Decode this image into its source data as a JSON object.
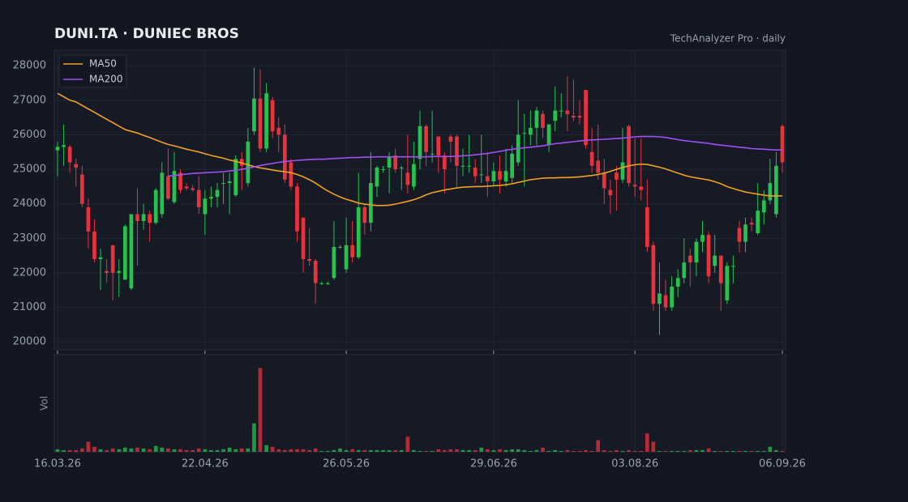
{
  "chart_data": {
    "type": "candlestick",
    "title": "DUNI.TA  ·  DUNIEC BROS",
    "subtitle": "TechAnalyzer Pro · daily",
    "grid": true,
    "legend": "upper left",
    "up_color": "#26c14f",
    "down_color": "#e8323c",
    "xlim": [
      0,
      118
    ],
    "xticks": [
      {
        "value": 0,
        "label": "16.03.26"
      },
      {
        "value": 24,
        "label": "22.04.26"
      },
      {
        "value": 47,
        "label": "26.05.26"
      },
      {
        "value": 71,
        "label": "29.06.26"
      },
      {
        "value": 94,
        "label": "03.08.26"
      },
      {
        "value": 118,
        "label": "06.09.26"
      }
    ],
    "ylim": [
      19770,
      28450
    ],
    "yticks": [
      20000,
      21000,
      22000,
      23000,
      24000,
      25000,
      26000,
      27000,
      28000
    ],
    "open": [
      25550,
      25650,
      25650,
      25150,
      24850,
      23900,
      23200,
      22400,
      22050,
      22800,
      22000,
      21800,
      21550,
      23700,
      23500,
      23700,
      23450,
      23700,
      24800,
      24050,
      24900,
      24500,
      24450,
      24400,
      23700,
      24150,
      24200,
      24600,
      24600,
      24250,
      25300,
      24600,
      26100,
      27050,
      25600,
      27000,
      26200,
      26000,
      25200,
      24500,
      23600,
      22400,
      22350,
      21700,
      21700,
      21850,
      22750,
      22100,
      22800,
      22450,
      23900,
      23450,
      24500,
      25000,
      25050,
      25400,
      25050,
      24900,
      24500,
      25300,
      26250,
      25450,
      25950,
      25400,
      25950,
      25950,
      25100,
      25100,
      25050,
      24850,
      24800,
      24650,
      24950,
      24650,
      24750,
      25200,
      26050,
      26000,
      26200,
      26600,
      25700,
      26400,
      26700,
      26700,
      26550,
      26550,
      27300,
      25500,
      25250,
      24900,
      24400,
      24900,
      24700,
      26250,
      24550,
      24500,
      23900,
      22800,
      21100,
      21350,
      21000,
      21600,
      21850,
      22500,
      22300,
      22900,
      23100,
      22200,
      22500,
      21200,
      22200,
      23300,
      22900,
      23450,
      23150,
      23750,
      24100,
      23700,
      26250
    ],
    "high": [
      25800,
      26300,
      25700,
      25300,
      25100,
      24150,
      23550,
      22700,
      22400,
      22800,
      22400,
      23400,
      23700,
      24450,
      24000,
      23800,
      24450,
      25200,
      25600,
      25500,
      25000,
      24600,
      24550,
      24800,
      24400,
      24500,
      24600,
      24900,
      24900,
      25400,
      25500,
      26200,
      27950,
      27900,
      27500,
      27100,
      26500,
      26300,
      25300,
      24600,
      23600,
      23300,
      22400,
      21750,
      21750,
      23500,
      22800,
      23600,
      23500,
      24900,
      24000,
      25500,
      25100,
      25100,
      25500,
      25600,
      25100,
      26000,
      25800,
      26700,
      26300,
      26700,
      25950,
      25500,
      26000,
      26000,
      25600,
      26000,
      25300,
      26000,
      25500,
      25200,
      25400,
      25600,
      25700,
      27000,
      26600,
      26700,
      26800,
      26700,
      26300,
      27400,
      27200,
      27700,
      27600,
      27000,
      27300,
      26200,
      26300,
      25300,
      24700,
      25100,
      26200,
      26300,
      25900,
      25900,
      24700,
      22900,
      22300,
      21800,
      21900,
      22100,
      23000,
      22700,
      23000,
      23500,
      23200,
      23100,
      22500,
      22300,
      22500,
      23500,
      23600,
      23600,
      24600,
      24400,
      25300,
      25500,
      26300
    ],
    "low": [
      24800,
      25100,
      24900,
      24500,
      23900,
      22700,
      22300,
      21500,
      21700,
      21200,
      21300,
      21800,
      21500,
      22200,
      23250,
      22900,
      23400,
      23600,
      24100,
      24000,
      24300,
      24400,
      24350,
      23700,
      23100,
      23900,
      23900,
      24000,
      23700,
      24200,
      24400,
      24500,
      26000,
      25500,
      25500,
      25900,
      25500,
      24600,
      24400,
      22900,
      22000,
      22200,
      21100,
      21650,
      21650,
      21800,
      22700,
      22000,
      22300,
      22400,
      23100,
      23200,
      24200,
      24900,
      24300,
      24900,
      24400,
      24300,
      24400,
      25000,
      25100,
      25200,
      24900,
      24300,
      25200,
      24500,
      24800,
      24900,
      24600,
      24600,
      24200,
      24500,
      24300,
      24500,
      24600,
      25100,
      24500,
      25700,
      25700,
      25900,
      25500,
      26100,
      26500,
      26100,
      26400,
      26300,
      25600,
      24900,
      24700,
      24000,
      23700,
      23800,
      24600,
      24500,
      24200,
      24100,
      22600,
      20900,
      20200,
      20900,
      20900,
      21300,
      21700,
      21600,
      21900,
      22600,
      21700,
      22000,
      20900,
      21100,
      21700,
      22600,
      22600,
      23200,
      23100,
      23400,
      24000,
      23600,
      24900
    ],
    "close": [
      25650,
      25700,
      25200,
      25050,
      24000,
      23200,
      22400,
      22450,
      22000,
      22000,
      22050,
      23350,
      23700,
      23500,
      23700,
      23450,
      24400,
      24900,
      24150,
      24950,
      24400,
      24450,
      24400,
      23900,
      24150,
      24200,
      24400,
      24600,
      24650,
      25300,
      25100,
      25800,
      27050,
      25600,
      27200,
      26100,
      26000,
      24700,
      24500,
      23200,
      22400,
      22350,
      21700,
      21700,
      21700,
      22750,
      22750,
      22800,
      22450,
      23900,
      23450,
      24600,
      25050,
      25000,
      25350,
      25000,
      25050,
      24550,
      25150,
      26250,
      25500,
      25450,
      25400,
      25000,
      25800,
      25100,
      25100,
      25100,
      24800,
      24850,
      24650,
      24950,
      24700,
      24950,
      25450,
      26000,
      26050,
      26200,
      26700,
      26200,
      26300,
      26700,
      26700,
      26600,
      26500,
      26500,
      25700,
      25100,
      24900,
      24450,
      24250,
      24700,
      25200,
      24600,
      24500,
      24400,
      22750,
      21100,
      21400,
      21000,
      21600,
      21850,
      22300,
      22300,
      22900,
      23100,
      21900,
      22500,
      21700,
      22200,
      22200,
      22900,
      23400,
      23400,
      23800,
      24100,
      24600,
      25100,
      25200
    ],
    "series": [
      {
        "name": "MA50",
        "color": "#f0a023",
        "values": [
          27200,
          27100,
          27000,
          26950,
          26850,
          26750,
          26650,
          26550,
          26450,
          26350,
          26250,
          26150,
          26100,
          26050,
          25980,
          25920,
          25850,
          25780,
          25720,
          25680,
          25630,
          25580,
          25540,
          25500,
          25450,
          25400,
          25360,
          25320,
          25270,
          25230,
          25180,
          25130,
          25080,
          25040,
          25010,
          24980,
          24950,
          24930,
          24900,
          24850,
          24780,
          24700,
          24600,
          24480,
          24370,
          24280,
          24200,
          24130,
          24080,
          24020,
          23990,
          23970,
          23950,
          23950,
          23960,
          23990,
          24030,
          24070,
          24120,
          24180,
          24260,
          24320,
          24360,
          24400,
          24430,
          24460,
          24480,
          24490,
          24500,
          24500,
          24510,
          24520,
          24530,
          24550,
          24580,
          24620,
          24660,
          24700,
          24720,
          24740,
          24750,
          24750,
          24760,
          24760,
          24770,
          24780,
          24800,
          24820,
          24850,
          24890,
          24940,
          25000,
          25050,
          25100,
          25130,
          25150,
          25140,
          25100,
          25060,
          25010,
          24950,
          24890,
          24830,
          24780,
          24750,
          24720,
          24690,
          24640,
          24580,
          24500,
          24440,
          24390,
          24340,
          24310,
          24280,
          24250,
          24230,
          24230,
          24230
        ]
      },
      {
        "name": "MA200",
        "color": "#a24ff0",
        "values": [
          null,
          null,
          null,
          null,
          null,
          null,
          null,
          null,
          null,
          null,
          null,
          null,
          null,
          null,
          null,
          null,
          null,
          null,
          24800,
          24820,
          24840,
          24860,
          24880,
          24890,
          24900,
          24910,
          24920,
          24930,
          24950,
          24970,
          25000,
          25030,
          25070,
          25110,
          25140,
          25170,
          25200,
          25220,
          25240,
          25260,
          25270,
          25280,
          25290,
          25290,
          25300,
          25310,
          25320,
          25330,
          25340,
          25340,
          25350,
          25350,
          25360,
          25360,
          25360,
          25360,
          25360,
          25360,
          25360,
          25360,
          25360,
          25370,
          25370,
          25370,
          25370,
          25380,
          25390,
          25400,
          25420,
          25440,
          25460,
          25490,
          25520,
          25550,
          25580,
          25600,
          25620,
          25640,
          25660,
          25680,
          25710,
          25740,
          25760,
          25780,
          25800,
          25820,
          25840,
          25850,
          25860,
          25870,
          25880,
          25890,
          25900,
          25920,
          25940,
          25950,
          25950,
          25950,
          25940,
          25920,
          25890,
          25860,
          25830,
          25810,
          25790,
          25770,
          25750,
          25720,
          25700,
          25680,
          25660,
          25640,
          25620,
          25600,
          25590,
          25580,
          25570,
          25560,
          25560
        ]
      }
    ],
    "volume": {
      "label": "Vol",
      "ylim": [
        0,
        116
      ],
      "values": [
        3,
        2,
        2,
        2,
        4,
        12,
        6,
        3,
        2,
        4,
        3,
        5,
        4,
        5,
        4,
        3,
        7,
        5,
        4,
        3,
        3,
        2,
        2,
        4,
        3,
        2,
        2,
        3,
        5,
        3,
        4,
        4,
        34,
        100,
        8,
        6,
        3,
        2,
        3,
        3,
        3,
        2,
        4,
        1,
        1,
        2,
        4,
        2,
        3,
        2,
        2,
        2,
        2,
        2,
        2,
        2,
        2,
        18,
        2,
        1,
        1,
        1,
        3,
        2,
        3,
        3,
        2,
        2,
        2,
        5,
        3,
        2,
        3,
        2,
        3,
        3,
        2,
        1,
        2,
        5,
        1,
        2,
        1,
        2,
        1,
        1,
        2,
        1,
        14,
        2,
        1,
        2,
        1,
        2,
        1,
        1,
        22,
        12,
        1,
        1,
        1,
        1,
        1,
        2,
        2,
        2,
        4,
        1,
        1,
        1,
        1,
        1,
        1,
        1,
        1,
        1,
        6,
        2,
        1
      ]
    }
  }
}
